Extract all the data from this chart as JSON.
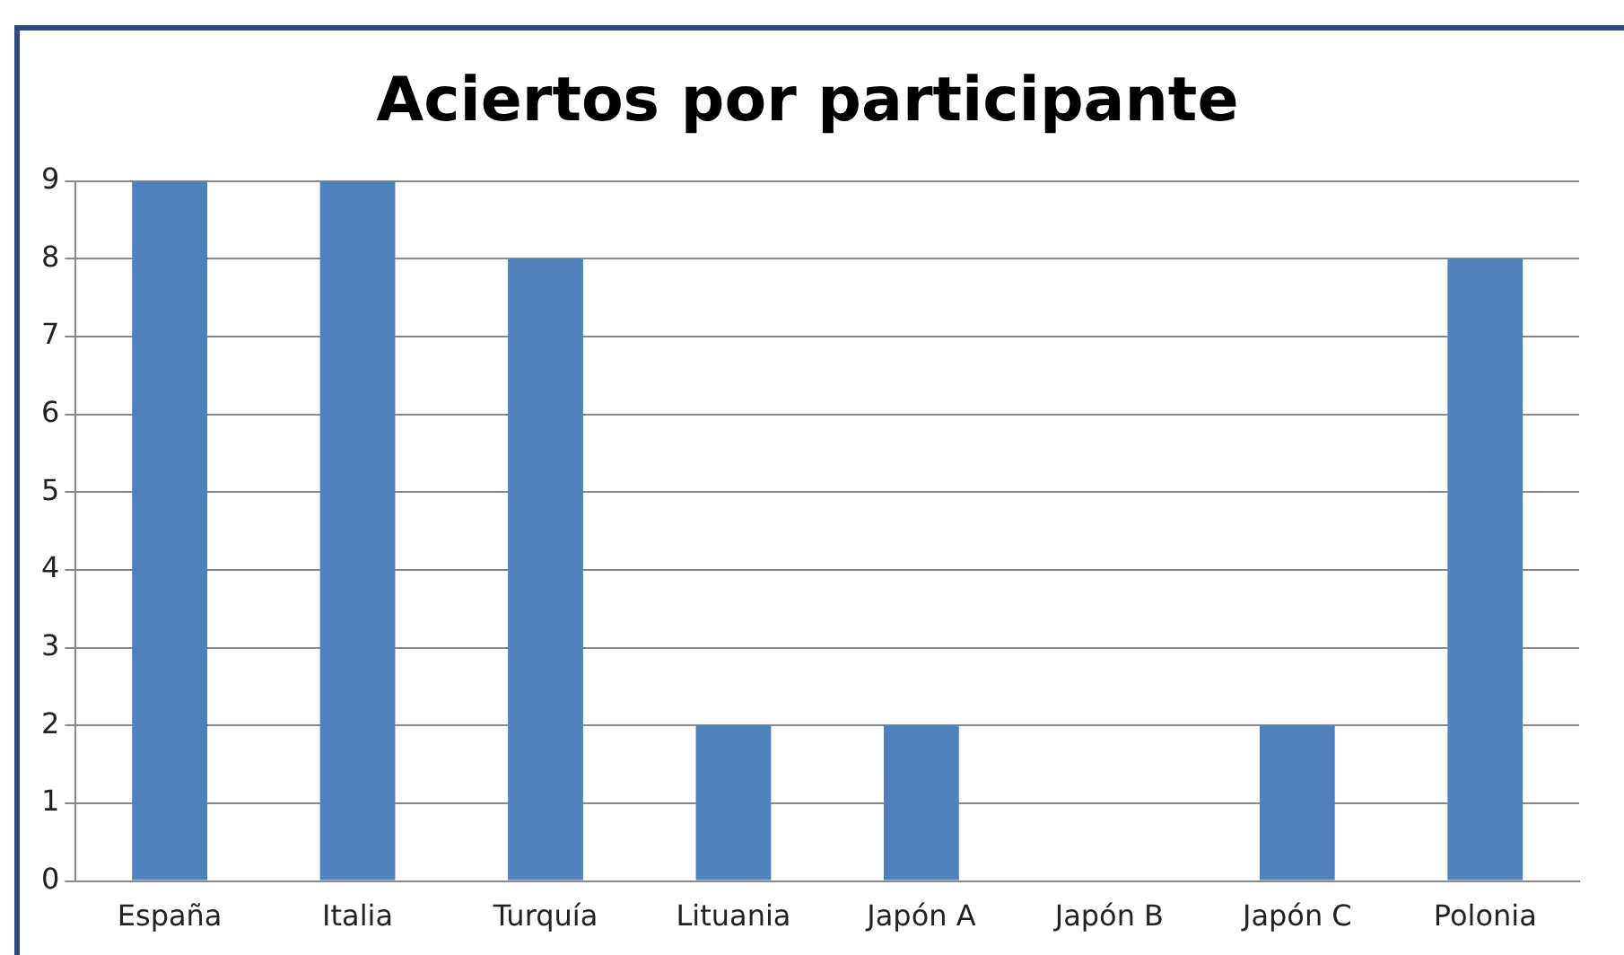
{
  "chart_data": {
    "type": "bar",
    "title": "Aciertos por participante",
    "categories": [
      "España",
      "Italia",
      "Turquía",
      "Lituania",
      "Japón A",
      "Japón B",
      "Japón C",
      "Polonia"
    ],
    "values": [
      9,
      9,
      8,
      2,
      2,
      0,
      2,
      8
    ],
    "color": "#4f81bd",
    "ylim": [
      0,
      9
    ],
    "yticks": [
      0,
      1,
      2,
      3,
      4,
      5,
      6,
      7,
      8,
      9
    ],
    "grid": "y",
    "legend": false
  }
}
